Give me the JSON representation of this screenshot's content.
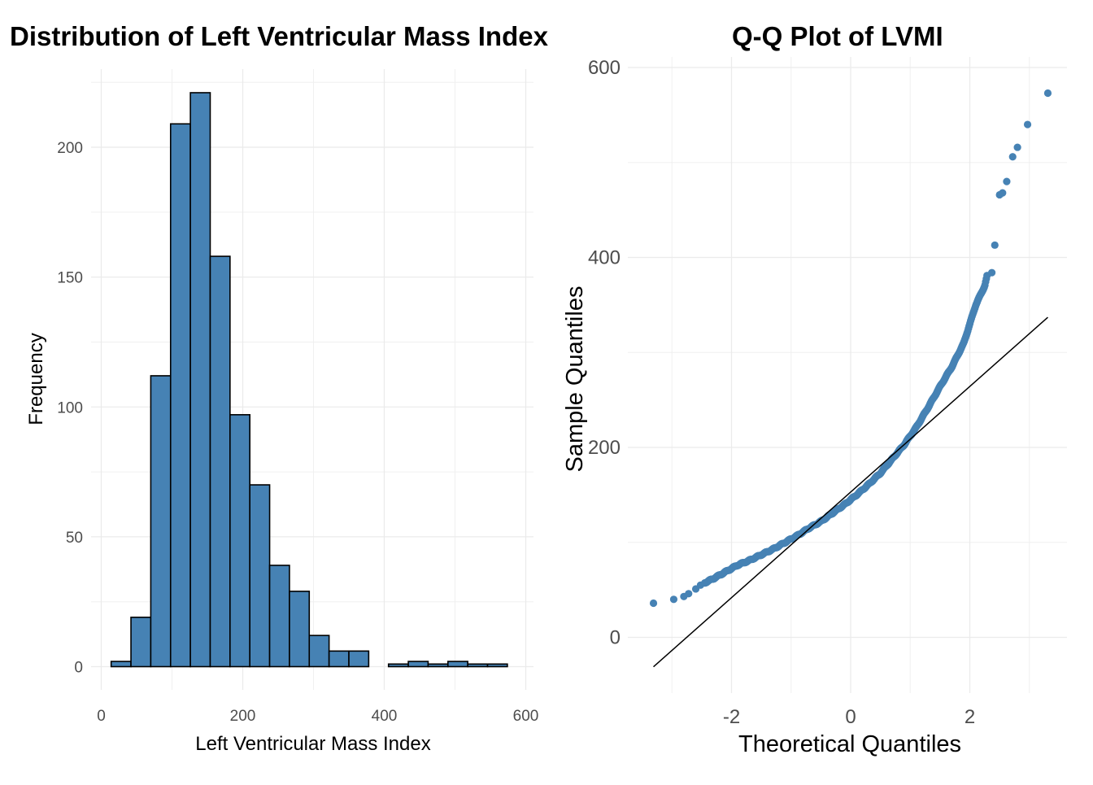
{
  "chart_data": [
    {
      "type": "bar",
      "title": "Distribution of Left Ventricular Mass Index",
      "xlabel": "Left Ventricular Mass Index",
      "ylabel": "Frequency",
      "xlim": [
        0,
        600
      ],
      "ylim": [
        0,
        225
      ],
      "xticks": [
        0,
        200,
        400,
        600
      ],
      "yticks": [
        0,
        50,
        100,
        150,
        200
      ],
      "bin_width": 28,
      "bins": [
        {
          "x0": 14,
          "x1": 42,
          "count": 2
        },
        {
          "x0": 42,
          "x1": 70,
          "count": 19
        },
        {
          "x0": 70,
          "x1": 98,
          "count": 112
        },
        {
          "x0": 98,
          "x1": 126,
          "count": 209
        },
        {
          "x0": 126,
          "x1": 154,
          "count": 221
        },
        {
          "x0": 154,
          "x1": 182,
          "count": 158
        },
        {
          "x0": 182,
          "x1": 210,
          "count": 97
        },
        {
          "x0": 210,
          "x1": 238,
          "count": 70
        },
        {
          "x0": 238,
          "x1": 266,
          "count": 39
        },
        {
          "x0": 266,
          "x1": 294,
          "count": 29
        },
        {
          "x0": 294,
          "x1": 322,
          "count": 12
        },
        {
          "x0": 322,
          "x1": 350,
          "count": 6
        },
        {
          "x0": 350,
          "x1": 378,
          "count": 6
        },
        {
          "x0": 378,
          "x1": 406,
          "count": 0
        },
        {
          "x0": 406,
          "x1": 434,
          "count": 1
        },
        {
          "x0": 434,
          "x1": 462,
          "count": 2
        },
        {
          "x0": 462,
          "x1": 490,
          "count": 1
        },
        {
          "x0": 490,
          "x1": 518,
          "count": 2
        },
        {
          "x0": 518,
          "x1": 546,
          "count": 1
        },
        {
          "x0": 546,
          "x1": 574,
          "count": 1
        }
      ],
      "fill_color": "#4682B4",
      "outline_color": "#000000",
      "grid": true
    },
    {
      "type": "scatter",
      "title": "Q-Q Plot of LVMI",
      "xlabel": "Theoretical Quantiles",
      "ylabel": "Sample Quantiles",
      "xlim": [
        -3.4,
        3.5
      ],
      "ylim": [
        -30,
        600
      ],
      "xticks": [
        -2,
        0,
        2
      ],
      "yticks": [
        0,
        200,
        400,
        600
      ],
      "grid": true,
      "point_color": "#4682B4",
      "line_color": "#000000",
      "reference_line": {
        "x": [
          -3.31,
          3.31
        ],
        "y": [
          -31,
          337
        ]
      },
      "anchor_points": [
        [
          -3.31,
          36
        ],
        [
          -2.97,
          40
        ],
        [
          -2.78,
          44
        ],
        [
          -2.65,
          50
        ],
        [
          -2.5,
          56
        ],
        [
          -2.3,
          62
        ],
        [
          -2.1,
          69
        ],
        [
          -1.9,
          76
        ],
        [
          -1.7,
          81
        ],
        [
          -1.5,
          87
        ],
        [
          -1.3,
          93
        ],
        [
          -1.1,
          100
        ],
        [
          -0.9,
          107
        ],
        [
          -0.7,
          115
        ],
        [
          -0.5,
          122
        ],
        [
          -0.3,
          131
        ],
        [
          -0.1,
          140
        ],
        [
          0.1,
          150
        ],
        [
          0.3,
          161
        ],
        [
          0.5,
          173
        ],
        [
          0.7,
          188
        ],
        [
          0.9,
          203
        ],
        [
          1.1,
          221
        ],
        [
          1.3,
          242
        ],
        [
          1.5,
          264
        ],
        [
          1.7,
          285
        ],
        [
          1.9,
          310
        ],
        [
          2.0,
          330
        ],
        [
          2.1,
          350
        ],
        [
          2.25,
          370
        ],
        [
          2.3,
          383
        ]
      ],
      "tail_points": [
        [
          2.37,
          384
        ],
        [
          2.42,
          413
        ],
        [
          2.5,
          466
        ],
        [
          2.55,
          468
        ],
        [
          2.62,
          480
        ],
        [
          2.72,
          506
        ],
        [
          2.8,
          516
        ],
        [
          2.97,
          540
        ],
        [
          3.31,
          573
        ]
      ]
    }
  ]
}
